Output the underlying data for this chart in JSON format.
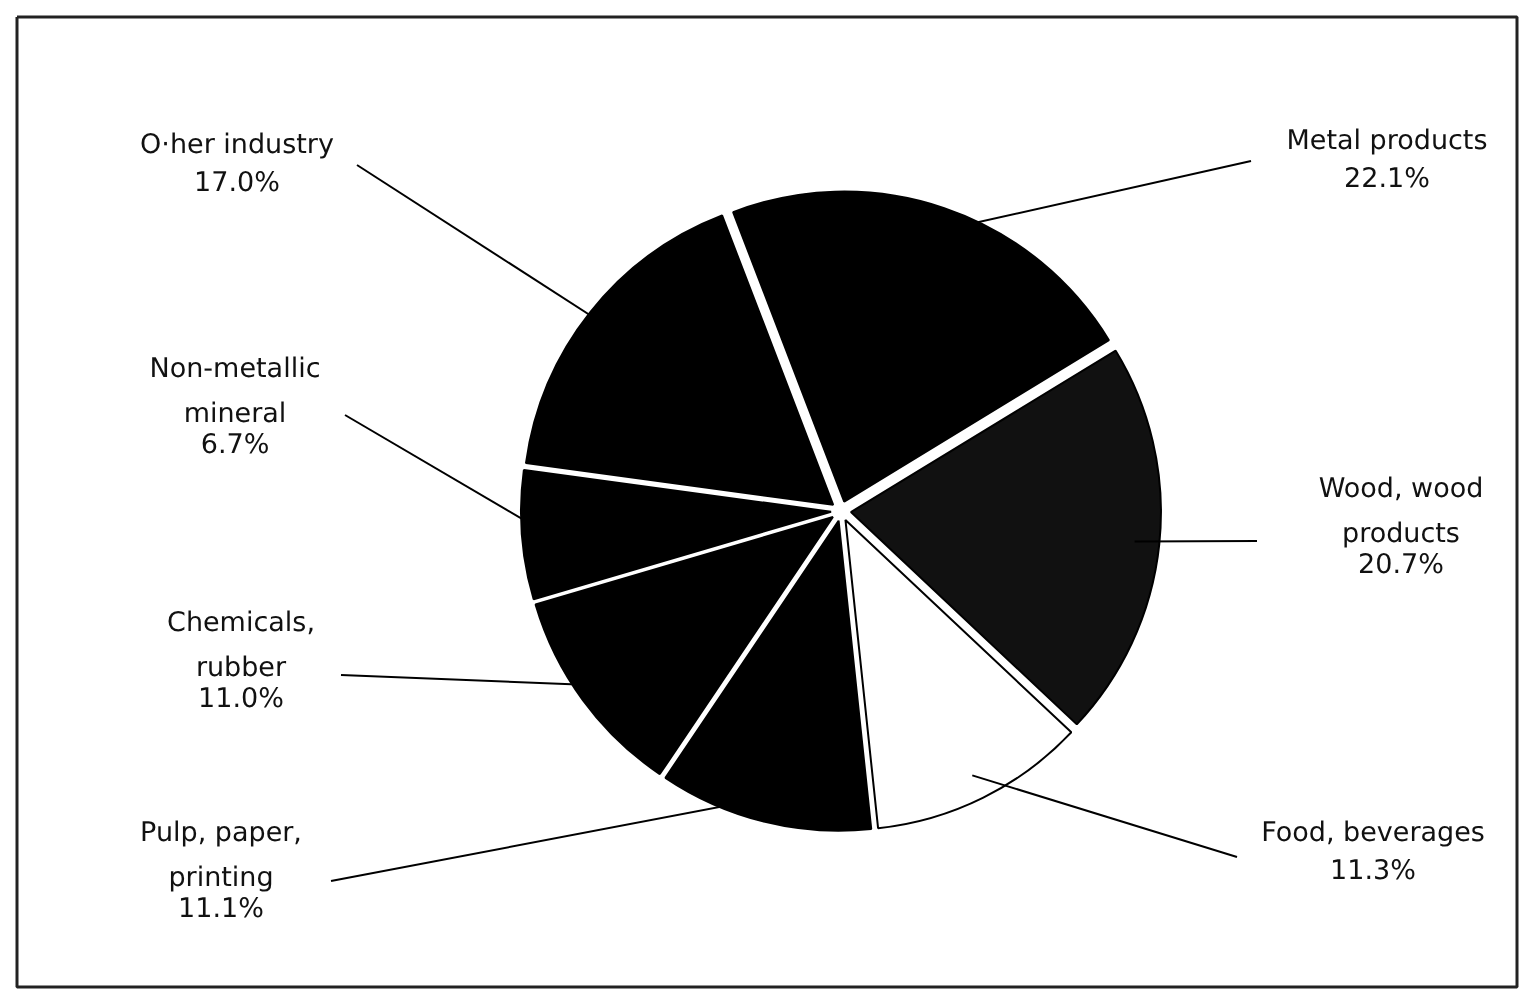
{
  "chart_data": {
    "type": "pie",
    "categories": [
      "Metal products",
      "Wood, wood products",
      "Food, beverages",
      "Pulp, paper, printing",
      "Chemicals, rubber",
      "Non-metallic mineral",
      "O·her industry"
    ],
    "values": [
      22.1,
      20.7,
      11.3,
      11.1,
      11.0,
      6.7,
      17.0
    ],
    "colors": [
      "#000000",
      "#111111",
      "#ffffff",
      "#000000",
      "#000000",
      "#000000",
      "#000000"
    ],
    "value_labels": [
      "22.1%",
      "20.7%",
      "11.3%",
      "11.1%",
      "11.0%",
      "6.7%",
      "17.0%"
    ]
  }
}
